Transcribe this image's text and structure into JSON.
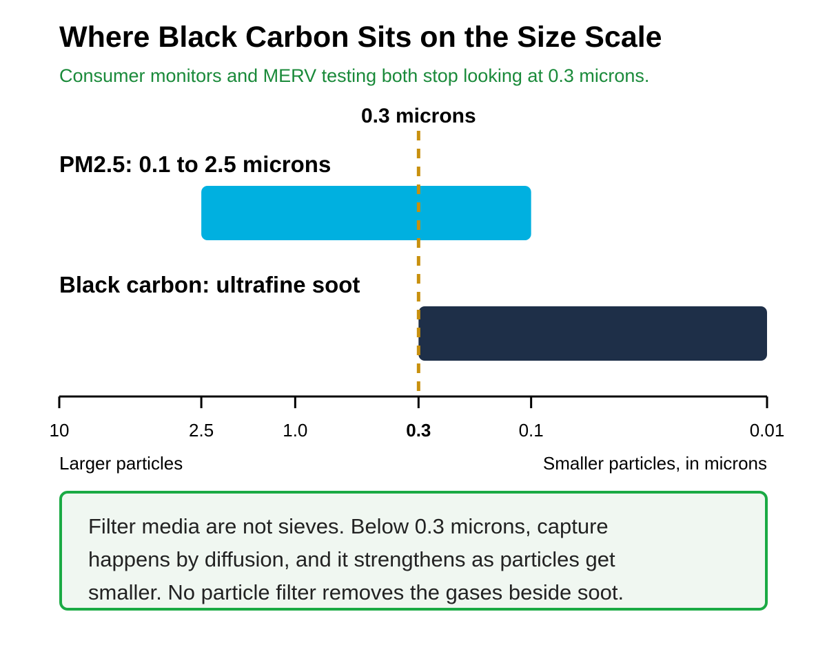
{
  "chart_data": {
    "type": "bar",
    "title": "Where Black Carbon Sits on the Size Scale",
    "subtitle": "Consumer monitors and MERV testing both stop looking at 0.3 microns.",
    "x_scale": "log",
    "x_direction": "descending",
    "xlim": [
      10,
      0.01
    ],
    "xlabel_left": "Larger particles",
    "xlabel_right": "Smaller particles, in microns",
    "ticks": [
      {
        "value": 10,
        "label": "10"
      },
      {
        "value": 2.5,
        "label": "2.5"
      },
      {
        "value": 1.0,
        "label": "1.0"
      },
      {
        "value": 0.3,
        "label": "0.3",
        "highlight": true
      },
      {
        "value": 0.1,
        "label": "0.1"
      },
      {
        "value": 0.01,
        "label": "0.01"
      }
    ],
    "reference_line": {
      "value": 0.3,
      "label": "0.3 microns",
      "color": "#c8900e"
    },
    "series": [
      {
        "name": "PM2.5: 0.1 to 2.5 microns",
        "start": 2.5,
        "end": 0.1,
        "color": "#00b0e0"
      },
      {
        "name": "Black carbon: ultrafine soot",
        "start": 0.3,
        "end": 0.01,
        "color": "#1e2f48"
      }
    ],
    "annotation": "Filter media are not sieves. Below 0.3 microns, capture happens by diffusion, and it strengthens as particles get smaller. No particle filter removes the gases beside soot."
  }
}
